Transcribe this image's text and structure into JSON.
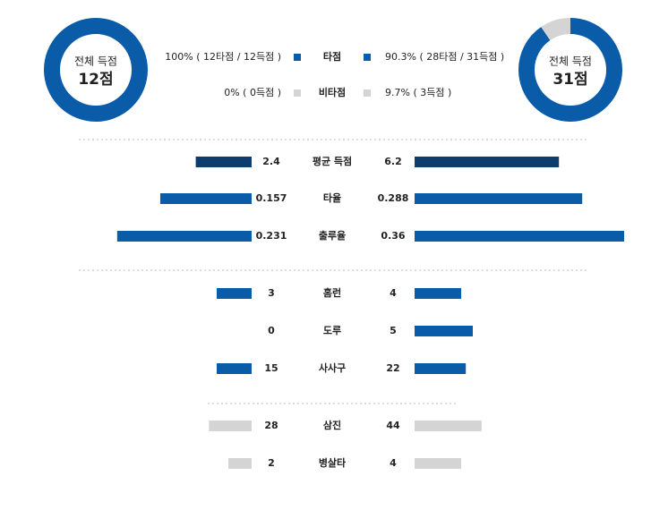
{
  "teams": [
    {
      "label": "전체 득점",
      "total": "12점"
    },
    {
      "label": "전체 득점",
      "total": "31점"
    }
  ],
  "legend": [
    {
      "name": "타점",
      "color": "#0a5ca8",
      "left": "100% ( 12타점 / 12득점 )",
      "left_value": 100,
      "right": "90.3% ( 28타점 / 31득점 )",
      "right_value": 90.3
    },
    {
      "name": "비타점",
      "color": "#d4d4d4",
      "left": "0% ( 0득점 )",
      "left_value": 0,
      "right": "9.7% ( 3득점 )",
      "right_value": 9.7
    }
  ],
  "rows": [
    {
      "name": "평균 득점",
      "left": 2.4,
      "right": 6.2,
      "color": "#0d3c6e"
    },
    {
      "name": "타율",
      "left": 0.157,
      "right": 0.288,
      "color": "#0a5ca8"
    },
    {
      "name": "출루율",
      "left": 0.231,
      "right": 0.36,
      "color": "#0a5ca8"
    },
    {
      "name": "홈런",
      "left": 3,
      "right": 4,
      "color": "#0a5ca8"
    },
    {
      "name": "도루",
      "left": 0,
      "right": 5,
      "color": "#0a5ca8"
    },
    {
      "name": "사사구",
      "left": 15,
      "right": 22,
      "color": "#0a5ca8"
    },
    {
      "name": "삼진",
      "left": 28,
      "right": 44,
      "color": "#d4d4d4"
    },
    {
      "name": "병살타",
      "left": 2,
      "right": 4,
      "color": "#d4d4d4"
    }
  ]
}
